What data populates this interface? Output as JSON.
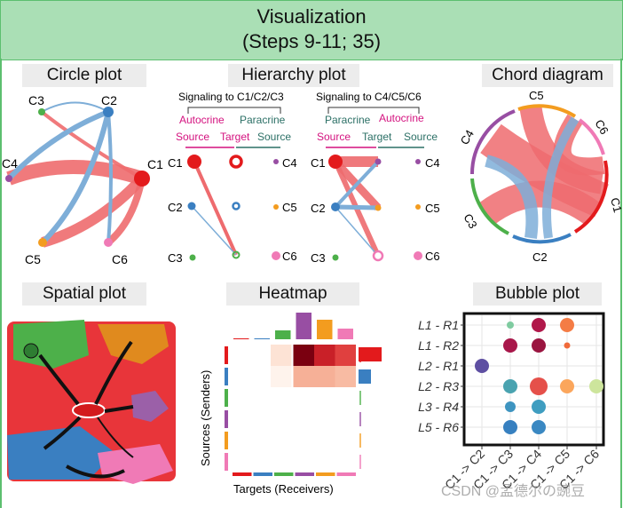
{
  "header": {
    "title": "Visualization",
    "subtitle": "(Steps 9-11; 35)"
  },
  "panels": {
    "circle": "Circle plot",
    "hierarchy": "Hierarchy plot",
    "chord": "Chord diagram",
    "spatial": "Spatial plot",
    "heatmap": "Heatmap",
    "bubble": "Bubble plot"
  },
  "cells": [
    "C1",
    "C2",
    "C3",
    "C4",
    "C5",
    "C6"
  ],
  "colors": {
    "C1": "#e31a1c",
    "C2": "#3a7fc1",
    "C3": "#4db04a",
    "C4": "#984ea3",
    "C5": "#f39c1f",
    "C6": "#f07ab6"
  },
  "hierarchy": {
    "left": {
      "title": "Signaling to C1/C2/C3",
      "autocrine": "Autocrine",
      "paracrine": "Paracrine",
      "source1": "Source",
      "target": "Target",
      "source2": "Source"
    },
    "right": {
      "title": "Signaling to C4/C5/C6",
      "paracrine": "Paracrine",
      "autocrine": "Autocrine",
      "source1": "Source",
      "target": "Target",
      "source2": "Source"
    }
  },
  "heatmap": {
    "ylabel": "Sources (Senders)",
    "xlabel": "Targets (Receivers)"
  },
  "bubble": {
    "rows": [
      "L1 - R1",
      "L1 - R2",
      "L2 - R1",
      "L2 - R3",
      "L3 - R4",
      "L5 - R6"
    ],
    "cols": [
      "C1 -> C2",
      "C1 -> C3",
      "C1 -> C4",
      "C1 -> C5",
      "C1 -> C6"
    ]
  },
  "watermark": "CSDN @孟德尔の豌豆"
}
